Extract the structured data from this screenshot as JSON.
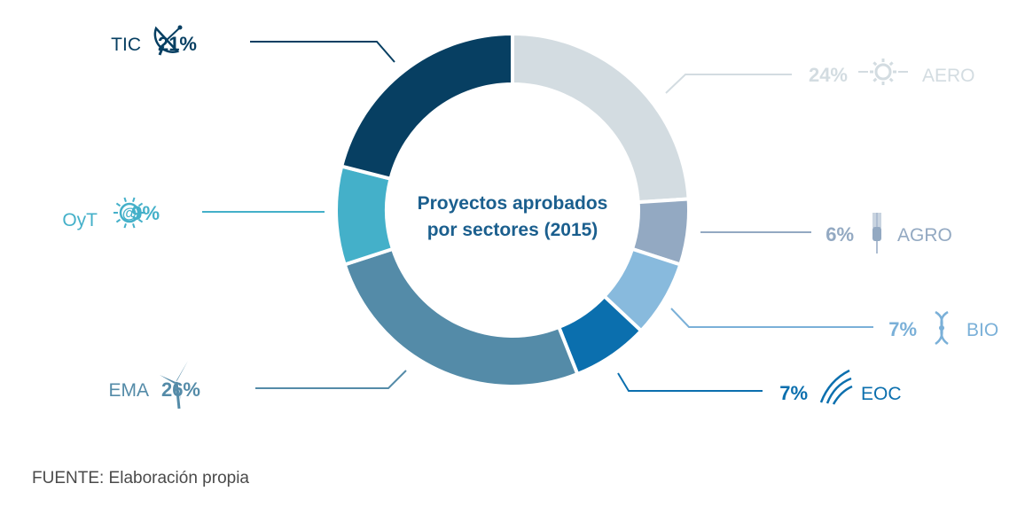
{
  "chart_data": {
    "type": "pie",
    "donut": true,
    "center_title": [
      "Proyectos aprobados",
      "por sectores (2015)"
    ],
    "unit": "%",
    "slices": [
      {
        "name": "AERO",
        "value": 24,
        "color": "#d3dce1",
        "label_color": "#d3dce1",
        "icon": "gear-icon"
      },
      {
        "name": "AGRO",
        "value": 6,
        "color": "#93a9c2",
        "label_color": "#93a9c2",
        "icon": "wheat-icon"
      },
      {
        "name": "BIO",
        "value": 7,
        "color": "#88badd",
        "label_color": "#7ab0d8",
        "icon": "dna-icon"
      },
      {
        "name": "EOC",
        "value": 7,
        "color": "#0b6fae",
        "label_color": "#0b6fae",
        "icon": "waves-icon"
      },
      {
        "name": "EMA",
        "value": 26,
        "color": "#548ba8",
        "label_color": "#548ba8",
        "icon": "wind-turbine-icon"
      },
      {
        "name": "OyT",
        "value": 9,
        "color": "#44b0c9",
        "label_color": "#44b0c9",
        "icon": "at-sun-icon"
      },
      {
        "name": "TIC",
        "value": 21,
        "color": "#073f62",
        "label_color": "#073f62",
        "icon": "satellite-dish-icon"
      }
    ]
  },
  "source": "FUENTE: Elaboración propia"
}
